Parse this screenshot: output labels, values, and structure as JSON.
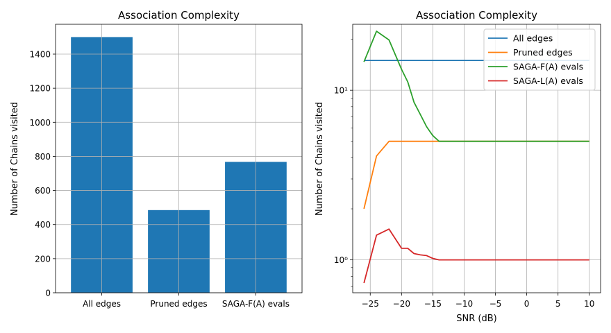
{
  "chart_data": [
    {
      "type": "bar",
      "title": "Association Complexity",
      "xlabel": "",
      "ylabel": "Number of Chains visited",
      "categories": [
        "All edges",
        "Pruned edges",
        "SAGA-F(A) evals"
      ],
      "values": [
        1500,
        485,
        768
      ],
      "ylim": [
        0,
        1575
      ],
      "yticks": [
        0,
        200,
        400,
        600,
        800,
        1000,
        1200,
        1400
      ],
      "grid": true,
      "bar_color": "#1f77b4"
    },
    {
      "type": "line",
      "title": "Association Complexity",
      "xlabel": "SNR (dB)",
      "ylabel": "Number of Chains visited",
      "yscale": "log",
      "xlim": [
        -27.8,
        11.8
      ],
      "ylim": [
        0.64,
        24.5
      ],
      "xticks": [
        -25,
        -20,
        -15,
        -10,
        -5,
        0,
        5,
        10
      ],
      "yticks": [
        1,
        10
      ],
      "ytick_labels": [
        "10⁰",
        "10¹"
      ],
      "grid": true,
      "legend": "top-right",
      "x": [
        -26,
        -24,
        -22,
        -20,
        -19,
        -18,
        -17,
        -16,
        -15,
        -14,
        -12,
        -10,
        -5,
        0,
        5,
        10
      ],
      "series": [
        {
          "name": "All edges",
          "color": "#1f77b4",
          "values": [
            15,
            15,
            15,
            15,
            15,
            15,
            15,
            15,
            15,
            15,
            15,
            15,
            15,
            15,
            15,
            15
          ]
        },
        {
          "name": "Pruned edges",
          "color": "#ff7f0e",
          "values": [
            2.0,
            4.1,
            5.0,
            5.0,
            5.0,
            5.0,
            5.0,
            5.0,
            5.0,
            5.0,
            5.0,
            5.0,
            5.0,
            5.0,
            5.0,
            5.0
          ]
        },
        {
          "name": "SAGA-F(A) evals",
          "color": "#2ca02c",
          "values": [
            14.7,
            22.3,
            19.8,
            13.3,
            11.2,
            8.5,
            7.2,
            6.1,
            5.4,
            5.0,
            5.0,
            5.0,
            5.0,
            5.0,
            5.0,
            5.0
          ]
        },
        {
          "name": "SAGA-L(A) evals",
          "color": "#d62728",
          "values": [
            0.73,
            1.4,
            1.52,
            1.17,
            1.17,
            1.09,
            1.07,
            1.06,
            1.02,
            1.0,
            1.0,
            1.0,
            1.0,
            1.0,
            1.0,
            1.0
          ]
        }
      ]
    }
  ]
}
